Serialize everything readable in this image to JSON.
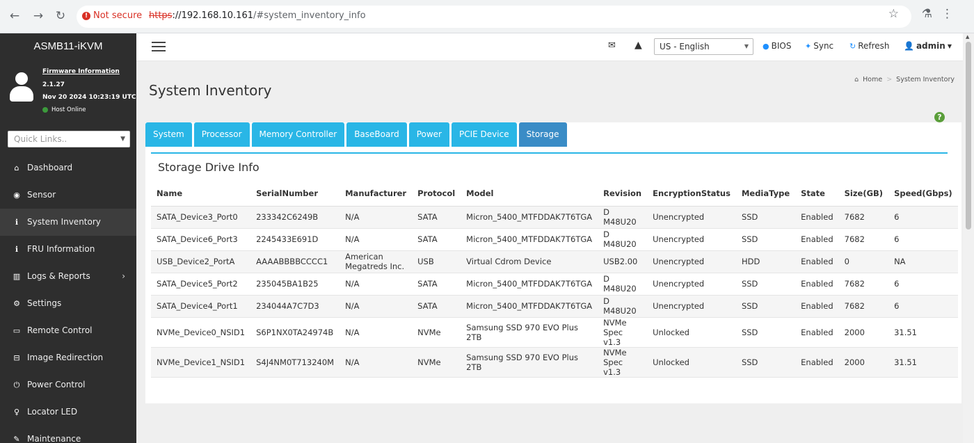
{
  "browser": {
    "back_icon": "←",
    "forward_icon": "→",
    "reload_icon": "↻",
    "security_label": "Not secure",
    "url_scheme": "https",
    "url_sep": "://",
    "url_host": "192.168.10.161",
    "url_path": "/#system_inventory_info"
  },
  "sidebar": {
    "brand": "ASMB11-iKVM",
    "firmware_link": "Firmware Information",
    "firmware_version": "2.1.27",
    "firmware_date": "Nov 20 2024 10:23:19 UTC",
    "host_status": "Host Online",
    "quick_links_placeholder": "Quick Links..",
    "items": [
      {
        "label": "Dashboard",
        "icon": "dashboard-icon"
      },
      {
        "label": "Sensor",
        "icon": "sensor-icon"
      },
      {
        "label": "System Inventory",
        "icon": "info-icon"
      },
      {
        "label": "FRU Information",
        "icon": "info-icon"
      },
      {
        "label": "Logs & Reports",
        "icon": "chart-icon"
      },
      {
        "label": "Settings",
        "icon": "gear-icon"
      },
      {
        "label": "Remote Control",
        "icon": "monitor-icon"
      },
      {
        "label": "Image Redirection",
        "icon": "drive-icon"
      },
      {
        "label": "Power Control",
        "icon": "power-icon"
      },
      {
        "label": "Locator LED",
        "icon": "bulb-icon"
      },
      {
        "label": "Maintenance",
        "icon": "wrench-icon"
      }
    ]
  },
  "header": {
    "language": "US - English",
    "bios_label": "BIOS",
    "sync_label": "Sync",
    "refresh_label": "Refresh",
    "user_label": "admin"
  },
  "page": {
    "title": "System Inventory",
    "breadcrumb_home": "Home",
    "breadcrumb_current": "System Inventory",
    "tabs": [
      "System",
      "Processor",
      "Memory Controller",
      "BaseBoard",
      "Power",
      "PCIE Device",
      "Storage"
    ],
    "section_title": "Storage Drive Info"
  },
  "table": {
    "columns": [
      "Name",
      "SerialNumber",
      "Manufacturer",
      "Protocol",
      "Model",
      "Revision",
      "EncryptionStatus",
      "MediaType",
      "State",
      "Size(GB)",
      "Speed(Gbps)"
    ],
    "rows": [
      [
        "SATA_Device3_Port0",
        "233342C6249B",
        "N/A",
        "SATA",
        "Micron_5400_MTFDDAK7T6TGA",
        "D M48U20",
        "Unencrypted",
        "SSD",
        "Enabled",
        "7682",
        "6"
      ],
      [
        "SATA_Device6_Port3",
        "2245433E691D",
        "N/A",
        "SATA",
        "Micron_5400_MTFDDAK7T6TGA",
        "D M48U20",
        "Unencrypted",
        "SSD",
        "Enabled",
        "7682",
        "6"
      ],
      [
        "USB_Device2_PortA",
        "AAAABBBBCCCC1",
        "American Megatreds Inc.",
        "USB",
        "Virtual Cdrom Device",
        "USB2.00",
        "Unencrypted",
        "HDD",
        "Enabled",
        "0",
        "NA"
      ],
      [
        "SATA_Device5_Port2",
        "235045BA1B25",
        "N/A",
        "SATA",
        "Micron_5400_MTFDDAK7T6TGA",
        "D M48U20",
        "Unencrypted",
        "SSD",
        "Enabled",
        "7682",
        "6"
      ],
      [
        "SATA_Device4_Port1",
        "234044A7C7D3",
        "N/A",
        "SATA",
        "Micron_5400_MTFDDAK7T6TGA",
        "D M48U20",
        "Unencrypted",
        "SSD",
        "Enabled",
        "7682",
        "6"
      ],
      [
        "NVMe_Device0_NSID1",
        "S6P1NX0TA24974B",
        "N/A",
        "NVMe",
        "Samsung SSD 970 EVO Plus 2TB",
        "NVMe Spec v1.3",
        "Unlocked",
        "SSD",
        "Enabled",
        "2000",
        "31.51"
      ],
      [
        "NVMe_Device1_NSID1",
        "S4J4NM0T713240M",
        "N/A",
        "NVMe",
        "Samsung SSD 970 EVO Plus 2TB",
        "NVMe Spec v1.3",
        "Unlocked",
        "SSD",
        "Enabled",
        "2000",
        "31.51"
      ]
    ]
  }
}
